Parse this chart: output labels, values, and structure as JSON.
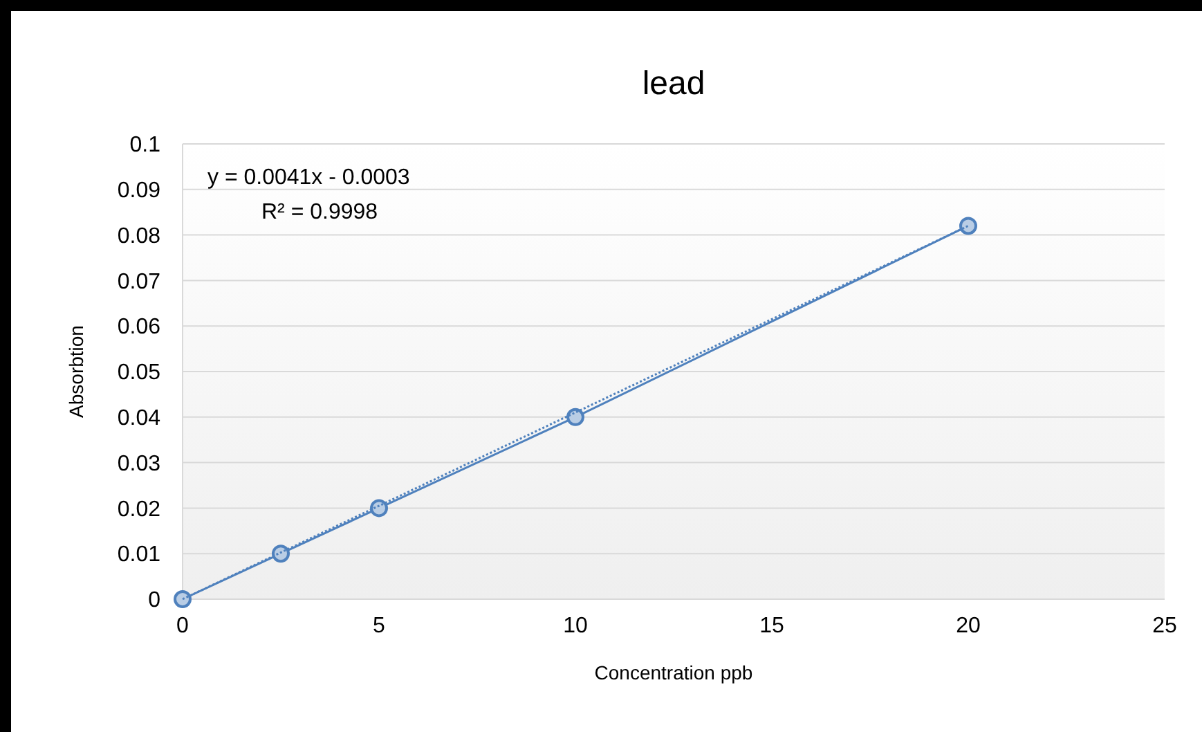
{
  "chart_data": {
    "type": "line",
    "title": "lead",
    "xlabel": "Concentration ppb",
    "ylabel": "Absorbtion",
    "x": [
      0,
      2.5,
      5,
      10,
      20
    ],
    "series": [
      {
        "color": "#4f81bd",
        "marker": "circle",
        "line_style": "solid",
        "values": [
          0,
          0.01,
          0.02,
          0.04,
          0.082
        ]
      },
      {
        "color": "#4f81bd",
        "marker": "none",
        "line_style": "dotted",
        "x": [
          0,
          20
        ],
        "values": [
          0,
          0.082
        ]
      }
    ],
    "xlim": [
      0,
      25
    ],
    "xticks": [
      0,
      5,
      10,
      15,
      20,
      25
    ],
    "ylim": [
      0,
      0.1
    ],
    "yticks": [
      0,
      0.01,
      0.02,
      0.03,
      0.04,
      0.05,
      0.06,
      0.07,
      0.08,
      0.09,
      0.1
    ],
    "grid": "y",
    "annotations": [
      "y = 0.0041x - 0.0003",
      "R² = 0.9998"
    ]
  }
}
